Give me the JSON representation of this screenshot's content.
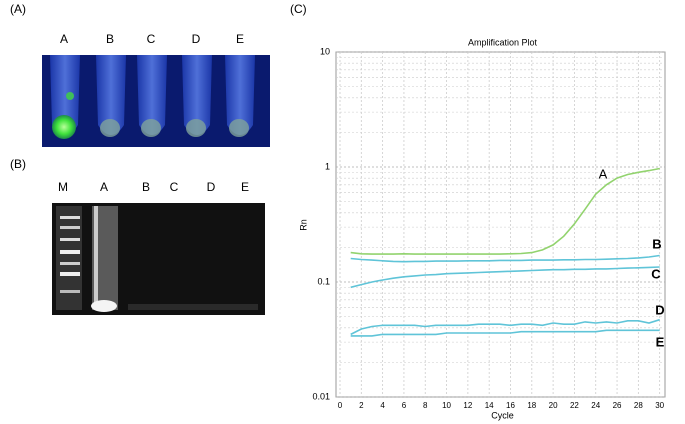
{
  "panels": {
    "a": {
      "label": "(A)",
      "lanes": [
        "A",
        "B",
        "C",
        "D",
        "E"
      ]
    },
    "b": {
      "label": "(B)",
      "lanes": [
        "M",
        "A",
        "B",
        "C",
        "D",
        "E"
      ]
    },
    "c": {
      "label": "(C)"
    }
  },
  "chart_data": {
    "type": "line",
    "title": "Amplification Plot",
    "x_label": "Cycle",
    "y_label": "Rn",
    "log_y": true,
    "grid": true,
    "x": [
      1,
      2,
      3,
      4,
      5,
      6,
      7,
      8,
      9,
      10,
      11,
      12,
      13,
      14,
      15,
      16,
      17,
      18,
      19,
      20,
      21,
      22,
      23,
      24,
      25,
      26,
      27,
      28,
      29,
      30
    ],
    "xlim": [
      0,
      30.5
    ],
    "xticks": [
      0,
      2,
      4,
      6,
      8,
      10,
      12,
      14,
      16,
      18,
      20,
      22,
      24,
      26,
      28,
      30
    ],
    "ylim": [
      0.01,
      10
    ],
    "yticks": [
      0.01,
      0.1,
      1,
      10
    ],
    "series": [
      {
        "name": "A",
        "color": "#92d36e",
        "values": [
          0.18,
          0.176,
          0.175,
          0.175,
          0.175,
          0.176,
          0.175,
          0.175,
          0.175,
          0.175,
          0.175,
          0.175,
          0.175,
          0.175,
          0.175,
          0.176,
          0.177,
          0.18,
          0.19,
          0.21,
          0.25,
          0.32,
          0.43,
          0.58,
          0.7,
          0.8,
          0.86,
          0.9,
          0.93,
          0.97
        ]
      },
      {
        "name": "B",
        "color": "#5fc4d8",
        "values": [
          0.16,
          0.157,
          0.155,
          0.153,
          0.151,
          0.15,
          0.151,
          0.151,
          0.152,
          0.152,
          0.152,
          0.153,
          0.153,
          0.153,
          0.154,
          0.154,
          0.154,
          0.155,
          0.155,
          0.155,
          0.156,
          0.156,
          0.157,
          0.157,
          0.158,
          0.159,
          0.16,
          0.162,
          0.165,
          0.17
        ]
      },
      {
        "name": "C",
        "color": "#5fc4d8",
        "values": [
          0.09,
          0.095,
          0.1,
          0.104,
          0.108,
          0.111,
          0.113,
          0.115,
          0.116,
          0.118,
          0.119,
          0.12,
          0.121,
          0.122,
          0.123,
          0.124,
          0.125,
          0.126,
          0.127,
          0.128,
          0.128,
          0.129,
          0.129,
          0.13,
          0.13,
          0.131,
          0.132,
          0.133,
          0.134,
          0.135
        ]
      },
      {
        "name": "D",
        "color": "#5fc4d8",
        "values": [
          0.035,
          0.039,
          0.041,
          0.042,
          0.042,
          0.042,
          0.042,
          0.041,
          0.042,
          0.042,
          0.042,
          0.042,
          0.043,
          0.043,
          0.043,
          0.042,
          0.043,
          0.043,
          0.042,
          0.044,
          0.043,
          0.043,
          0.045,
          0.044,
          0.045,
          0.044,
          0.046,
          0.046,
          0.044,
          0.047
        ]
      },
      {
        "name": "E",
        "color": "#5fc4d8",
        "values": [
          0.034,
          0.034,
          0.034,
          0.035,
          0.035,
          0.035,
          0.035,
          0.035,
          0.035,
          0.036,
          0.036,
          0.036,
          0.036,
          0.036,
          0.036,
          0.036,
          0.037,
          0.037,
          0.037,
          0.037,
          0.037,
          0.037,
          0.037,
          0.037,
          0.038,
          0.038,
          0.038,
          0.038,
          0.038,
          0.038
        ]
      }
    ]
  }
}
